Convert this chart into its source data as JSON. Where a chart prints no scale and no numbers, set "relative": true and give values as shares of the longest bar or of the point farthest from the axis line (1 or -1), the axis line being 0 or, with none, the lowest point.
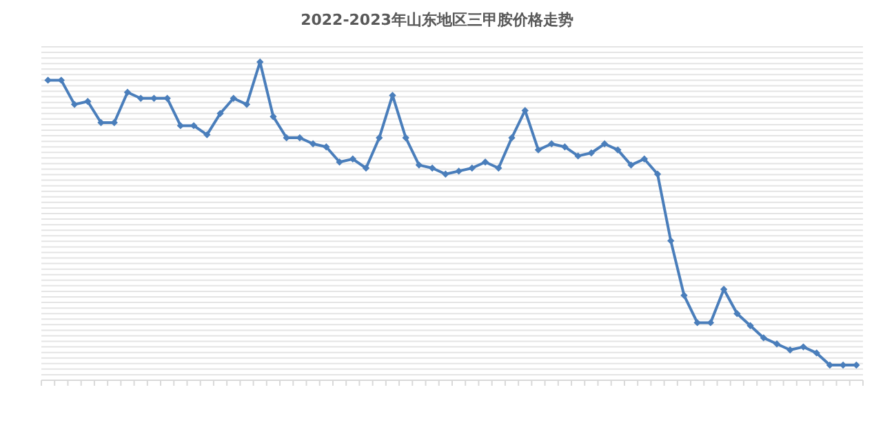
{
  "chart_data": {
    "type": "line",
    "title": "2022-2023年山东地区三甲胺价格走势",
    "relative": true,
    "grid": "y",
    "marker": "diamond",
    "line_style": "solid",
    "categories": [
      null,
      null,
      null,
      null,
      null,
      null,
      null,
      null,
      null,
      null,
      null,
      null,
      null,
      null,
      null,
      null,
      null,
      null,
      null,
      null,
      null,
      null,
      null,
      null,
      null,
      null,
      null,
      null,
      null,
      null,
      null,
      null,
      null,
      null,
      null,
      null,
      null,
      null,
      null,
      null,
      null,
      null,
      null,
      null,
      null,
      null,
      null,
      null,
      null,
      null,
      null,
      null,
      null,
      null,
      null,
      null,
      null,
      null,
      null,
      null,
      null,
      null
    ],
    "series": [
      {
        "color": "#4a7ebb",
        "values": [
          0.94,
          0.94,
          0.86,
          0.87,
          0.8,
          0.8,
          0.9,
          0.88,
          0.88,
          0.88,
          0.79,
          0.79,
          0.76,
          0.83,
          0.88,
          0.86,
          1,
          0.82,
          0.75,
          0.75,
          0.73,
          0.72,
          0.67,
          0.68,
          0.65,
          0.75,
          0.89,
          0.75,
          0.66,
          0.65,
          0.63,
          0.64,
          0.65,
          0.67,
          0.65,
          0.75,
          0.84,
          0.71,
          0.73,
          0.72,
          0.69,
          0.7,
          0.73,
          0.71,
          0.66,
          0.68,
          0.63,
          0.41,
          0.23,
          0.14,
          0.14,
          0.25,
          0.17,
          0.13,
          0.09,
          0.07,
          0.05,
          0.06,
          0.04,
          0,
          0,
          0
        ]
      }
    ]
  }
}
